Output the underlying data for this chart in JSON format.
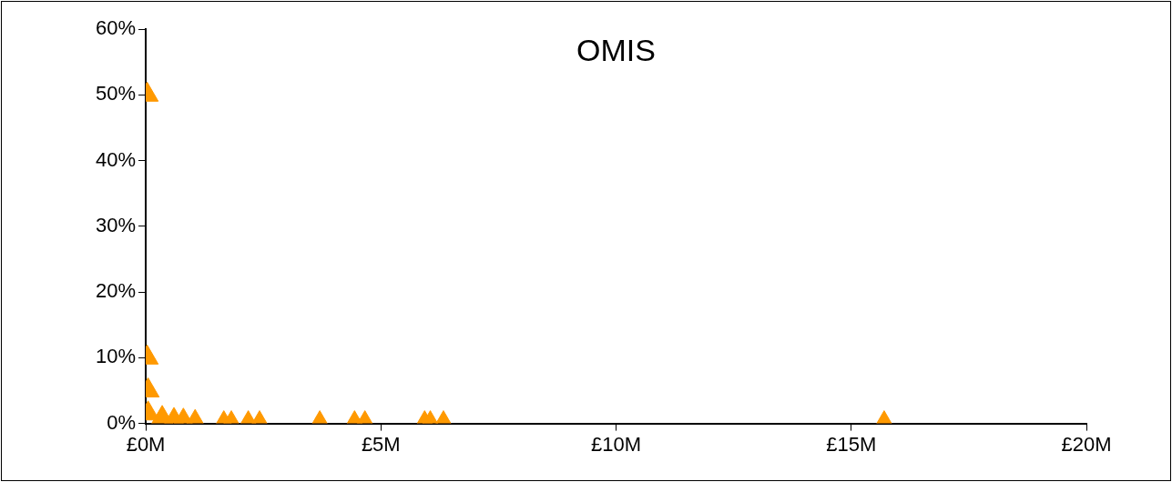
{
  "chart_data": {
    "type": "scatter",
    "title": "OMIS",
    "series": [
      {
        "color": "#ff9900",
        "x": [
          0.03,
          0.03,
          0.05,
          0.05,
          0.35,
          0.6,
          0.8,
          1.05,
          1.66,
          1.82,
          2.18,
          2.42,
          3.7,
          4.44,
          4.66,
          5.93,
          6.05,
          6.33,
          15.7
        ],
        "values": [
          50,
          10,
          5,
          1.5,
          0.8,
          0.5,
          0.4,
          0.2,
          0,
          0,
          0,
          0,
          0,
          0,
          0,
          0,
          0,
          0,
          0
        ]
      }
    ],
    "xlim": [
      0,
      20
    ],
    "xticks": [
      {
        "value": 0,
        "label": "£0M"
      },
      {
        "value": 5,
        "label": "£5M"
      },
      {
        "value": 10,
        "label": "£10M"
      },
      {
        "value": 15,
        "label": "£15M"
      },
      {
        "value": 20,
        "label": "£20M"
      }
    ],
    "ylim": [
      0,
      60
    ],
    "yticks": [
      {
        "value": 0,
        "label": "0%"
      },
      {
        "value": 10,
        "label": "10%"
      },
      {
        "value": 20,
        "label": "20%"
      },
      {
        "value": 30,
        "label": "30%"
      },
      {
        "value": 40,
        "label": "40%"
      },
      {
        "value": 50,
        "label": "50%"
      },
      {
        "value": 60,
        "label": "60%"
      }
    ],
    "grid": false,
    "legend": false,
    "marker": "triangle"
  }
}
